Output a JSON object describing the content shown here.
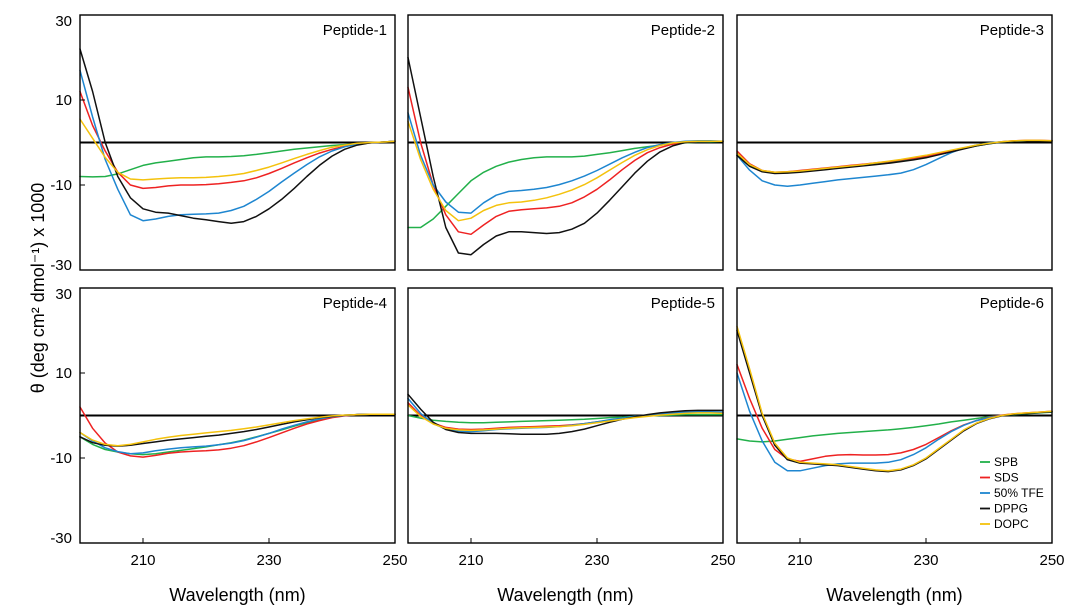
{
  "figure": {
    "ylabel": "θ (deg cm² dmol⁻¹) x 1000",
    "xlabel": "Wavelength (nm)"
  },
  "chart_data": {
    "type": "line",
    "xlim": [
      200,
      250
    ],
    "ylim": [
      -30,
      30
    ],
    "x_ticks": [
      210,
      230,
      250
    ],
    "y_ticks": [
      30,
      10,
      -10,
      -30
    ],
    "legend": {
      "placement": "bottom-right of Peptide-6 panel",
      "entries": [
        "SPB",
        "SDS",
        "50% TFE",
        "DPPG",
        "DOPC"
      ]
    },
    "colors": {
      "SPB": "#22b04a",
      "SDS": "#ee2222",
      "50% TFE": "#1e86d0",
      "DPPG": "#111111",
      "DOPC": "#f4c20d"
    },
    "x": [
      200,
      202,
      204,
      206,
      208,
      210,
      212,
      214,
      216,
      218,
      220,
      222,
      224,
      226,
      228,
      230,
      232,
      234,
      236,
      238,
      240,
      242,
      244,
      246,
      248,
      250
    ],
    "panels": [
      {
        "title": "Peptide-1",
        "series": [
          {
            "name": "SPB",
            "values": [
              -8.0,
              -8.1,
              -8.0,
              -7.4,
              -6.4,
              -5.4,
              -4.8,
              -4.4,
              -4.0,
              -3.6,
              -3.4,
              -3.4,
              -3.3,
              -3.1,
              -2.8,
              -2.4,
              -2.0,
              -1.6,
              -1.3,
              -1.0,
              -0.7,
              -0.5,
              -0.3,
              -0.1,
              0.1,
              0.3
            ]
          },
          {
            "name": "SDS",
            "values": [
              12,
              4.0,
              -2.0,
              -7.0,
              -10.0,
              -10.8,
              -10.6,
              -10.2,
              -10.0,
              -10.0,
              -9.9,
              -9.7,
              -9.4,
              -9.0,
              -8.3,
              -7.3,
              -6.1,
              -4.8,
              -3.6,
              -2.5,
              -1.6,
              -0.9,
              -0.4,
              -0.1,
              0.1,
              0.3
            ]
          },
          {
            "name": "50% TFE",
            "values": [
              17,
              6.0,
              -4.0,
              -11.0,
              -17.0,
              -18.4,
              -18.0,
              -17.4,
              -17.0,
              -16.9,
              -16.8,
              -16.6,
              -16.0,
              -15.0,
              -13.4,
              -11.5,
              -9.3,
              -7.2,
              -5.2,
              -3.4,
              -2.0,
              -1.0,
              -0.4,
              -0.1,
              0.1,
              0.3
            ]
          },
          {
            "name": "DPPG",
            "values": [
              22,
              12.0,
              0.0,
              -8.0,
              -13.0,
              -15.6,
              -16.4,
              -16.6,
              -17.2,
              -17.8,
              -18.2,
              -18.6,
              -19.0,
              -18.6,
              -17.4,
              -15.6,
              -13.4,
              -10.8,
              -8.0,
              -5.4,
              -3.2,
              -1.6,
              -0.6,
              -0.1,
              0.1,
              0.3
            ]
          },
          {
            "name": "DOPC",
            "values": [
              5.5,
              1.0,
              -3.5,
              -7.0,
              -8.6,
              -8.8,
              -8.6,
              -8.4,
              -8.3,
              -8.3,
              -8.2,
              -8.0,
              -7.7,
              -7.3,
              -6.6,
              -5.8,
              -4.8,
              -3.8,
              -2.8,
              -1.9,
              -1.1,
              -0.6,
              -0.2,
              0.0,
              0.1,
              0.3
            ]
          }
        ]
      },
      {
        "title": "Peptide-2",
        "series": [
          {
            "name": "SPB",
            "values": [
              -20.0,
              -20.0,
              -18.0,
              -15.0,
              -12.0,
              -9.0,
              -7.0,
              -5.6,
              -4.6,
              -4.0,
              -3.6,
              -3.4,
              -3.4,
              -3.4,
              -3.2,
              -2.8,
              -2.4,
              -1.9,
              -1.4,
              -1.0,
              -0.6,
              -0.3,
              -0.1,
              0.1,
              0.2,
              0.3
            ]
          },
          {
            "name": "SDS",
            "values": [
              13,
              0.0,
              -10.0,
              -17.0,
              -21.0,
              -21.6,
              -19.4,
              -17.4,
              -16.2,
              -15.8,
              -15.6,
              -15.4,
              -15.0,
              -14.2,
              -12.8,
              -11.0,
              -8.8,
              -6.4,
              -4.2,
              -2.4,
              -1.2,
              -0.4,
              0.0,
              0.2,
              0.3,
              0.3
            ]
          },
          {
            "name": "50% TFE",
            "values": [
              7.0,
              -3.0,
              -10.0,
              -14.0,
              -16.4,
              -16.6,
              -14.2,
              -12.4,
              -11.5,
              -11.3,
              -11.0,
              -10.6,
              -9.9,
              -9.0,
              -7.9,
              -6.6,
              -5.1,
              -3.6,
              -2.3,
              -1.2,
              -0.5,
              0.0,
              0.3,
              0.4,
              0.4,
              0.3
            ]
          },
          {
            "name": "DPPG",
            "values": [
              20,
              6.0,
              -8.0,
              -20.0,
              -26.0,
              -26.4,
              -24.0,
              -22.0,
              -21.0,
              -21.0,
              -21.2,
              -21.4,
              -21.2,
              -20.4,
              -19.0,
              -16.6,
              -13.6,
              -10.4,
              -7.2,
              -4.4,
              -2.2,
              -0.8,
              0.0,
              0.2,
              0.3,
              0.3
            ]
          },
          {
            "name": "DOPC",
            "values": [
              5.0,
              -4.0,
              -11.0,
              -16.0,
              -18.4,
              -17.8,
              -16.0,
              -14.8,
              -14.2,
              -14.0,
              -13.6,
              -13.0,
              -12.2,
              -11.2,
              -9.9,
              -8.3,
              -6.5,
              -4.7,
              -3.0,
              -1.7,
              -0.7,
              -0.1,
              0.2,
              0.3,
              0.3,
              0.3
            ]
          }
        ]
      },
      {
        "title": "Peptide-3",
        "series": [
          {
            "name": "SPB",
            "values": [
              -3.0,
              -5.4,
              -6.8,
              -7.1,
              -7.0,
              -6.8,
              -6.5,
              -6.1,
              -5.8,
              -5.5,
              -5.2,
              -4.9,
              -4.6,
              -4.3,
              -3.9,
              -3.4,
              -2.8,
              -2.1,
              -1.4,
              -0.8,
              -0.3,
              0.1,
              0.3,
              0.4,
              0.4,
              0.4
            ]
          },
          {
            "name": "SDS",
            "values": [
              -2.0,
              -5.0,
              -6.6,
              -7.0,
              -6.9,
              -6.6,
              -6.3,
              -6.0,
              -5.7,
              -5.4,
              -5.1,
              -4.8,
              -4.5,
              -4.1,
              -3.7,
              -3.2,
              -2.6,
              -2.0,
              -1.3,
              -0.7,
              -0.2,
              0.2,
              0.4,
              0.5,
              0.5,
              0.4
            ]
          },
          {
            "name": "50% TFE",
            "values": [
              -3.0,
              -6.5,
              -9.0,
              -10.0,
              -10.3,
              -10.0,
              -9.6,
              -9.2,
              -8.8,
              -8.5,
              -8.2,
              -7.9,
              -7.6,
              -7.2,
              -6.4,
              -5.2,
              -3.8,
              -2.4,
              -1.3,
              -0.6,
              -0.1,
              0.2,
              0.3,
              0.4,
              0.4,
              0.4
            ]
          },
          {
            "name": "DPPG",
            "values": [
              -3.0,
              -5.6,
              -6.9,
              -7.3,
              -7.2,
              -7.0,
              -6.7,
              -6.4,
              -6.1,
              -5.8,
              -5.5,
              -5.2,
              -4.9,
              -4.5,
              -4.1,
              -3.6,
              -2.9,
              -2.2,
              -1.5,
              -0.8,
              -0.3,
              0.1,
              0.3,
              0.4,
              0.4,
              0.4
            ]
          },
          {
            "name": "DOPC",
            "values": [
              -2.5,
              -5.2,
              -6.6,
              -7.0,
              -6.9,
              -6.7,
              -6.4,
              -6.1,
              -5.8,
              -5.5,
              -5.2,
              -4.8,
              -4.4,
              -4.0,
              -3.5,
              -3.0,
              -2.4,
              -1.8,
              -1.2,
              -0.6,
              -0.2,
              0.2,
              0.4,
              0.5,
              0.5,
              0.4
            ]
          }
        ]
      },
      {
        "title": "Peptide-4",
        "series": [
          {
            "name": "SPB",
            "values": [
              -5.0,
              -6.8,
              -8.0,
              -8.6,
              -9.0,
              -9.2,
              -9.0,
              -8.6,
              -8.2,
              -7.8,
              -7.4,
              -6.9,
              -6.4,
              -5.8,
              -5.0,
              -4.2,
              -3.4,
              -2.5,
              -1.7,
              -1.0,
              -0.4,
              0.0,
              0.2,
              0.3,
              0.3,
              0.3
            ]
          },
          {
            "name": "SDS",
            "values": [
              2.0,
              -3.0,
              -6.5,
              -8.6,
              -9.5,
              -9.8,
              -9.4,
              -8.9,
              -8.6,
              -8.4,
              -8.3,
              -8.1,
              -7.7,
              -7.1,
              -6.2,
              -5.2,
              -4.1,
              -3.0,
              -2.0,
              -1.2,
              -0.5,
              -0.1,
              0.2,
              0.3,
              0.3,
              0.3
            ]
          },
          {
            "name": "50% TFE",
            "values": [
              -4.0,
              -6.0,
              -7.6,
              -8.5,
              -9.0,
              -8.8,
              -8.3,
              -7.9,
              -7.6,
              -7.4,
              -7.2,
              -6.9,
              -6.5,
              -5.9,
              -5.1,
              -4.2,
              -3.2,
              -2.3,
              -1.5,
              -0.8,
              -0.3,
              0.0,
              0.2,
              0.3,
              0.3,
              0.3
            ]
          },
          {
            "name": "DPPG",
            "values": [
              -5.0,
              -6.4,
              -7.0,
              -7.2,
              -7.0,
              -6.6,
              -6.2,
              -5.8,
              -5.5,
              -5.2,
              -4.9,
              -4.6,
              -4.2,
              -3.8,
              -3.3,
              -2.7,
              -2.1,
              -1.5,
              -1.0,
              -0.5,
              -0.2,
              0.1,
              0.2,
              0.3,
              0.3,
              0.3
            ]
          },
          {
            "name": "DOPC",
            "values": [
              -4.0,
              -5.8,
              -6.8,
              -7.1,
              -6.8,
              -6.2,
              -5.6,
              -5.1,
              -4.7,
              -4.4,
              -4.1,
              -3.8,
              -3.5,
              -3.1,
              -2.7,
              -2.2,
              -1.7,
              -1.2,
              -0.8,
              -0.4,
              -0.1,
              0.1,
              0.2,
              0.3,
              0.3,
              0.3
            ]
          }
        ]
      },
      {
        "title": "Peptide-5",
        "series": [
          {
            "name": "SPB",
            "values": [
              0.0,
              -0.6,
              -1.1,
              -1.4,
              -1.6,
              -1.7,
              -1.7,
              -1.6,
              -1.5,
              -1.4,
              -1.3,
              -1.2,
              -1.1,
              -1.0,
              -0.9,
              -0.7,
              -0.5,
              -0.4,
              -0.2,
              -0.1,
              0.0,
              0.1,
              0.2,
              0.2,
              0.2,
              0.2
            ]
          },
          {
            "name": "SDS",
            "values": [
              3.0,
              0.0,
              -1.8,
              -2.8,
              -3.2,
              -3.3,
              -3.2,
              -3.0,
              -2.8,
              -2.7,
              -2.6,
              -2.5,
              -2.4,
              -2.2,
              -1.9,
              -1.5,
              -1.1,
              -0.7,
              -0.3,
              0.0,
              0.3,
              0.5,
              0.6,
              0.7,
              0.7,
              0.6
            ]
          },
          {
            "name": "50% TFE",
            "values": [
              4.0,
              0.5,
              -1.9,
              -3.2,
              -3.7,
              -3.8,
              -3.6,
              -3.3,
              -3.1,
              -3.0,
              -2.9,
              -2.8,
              -2.6,
              -2.3,
              -1.9,
              -1.5,
              -1.0,
              -0.6,
              -0.2,
              0.1,
              0.4,
              0.6,
              0.8,
              0.9,
              0.9,
              0.8
            ]
          },
          {
            "name": "DPPG",
            "values": [
              5.0,
              1.5,
              -1.6,
              -3.3,
              -4.0,
              -4.2,
              -4.2,
              -4.2,
              -4.3,
              -4.4,
              -4.4,
              -4.4,
              -4.2,
              -3.8,
              -3.2,
              -2.4,
              -1.6,
              -0.9,
              -0.3,
              0.2,
              0.6,
              0.9,
              1.1,
              1.2,
              1.2,
              1.2
            ]
          },
          {
            "name": "DOPC",
            "values": [
              2.5,
              -0.2,
              -2.0,
              -3.0,
              -3.4,
              -3.5,
              -3.4,
              -3.2,
              -3.0,
              -2.9,
              -2.8,
              -2.7,
              -2.6,
              -2.4,
              -2.1,
              -1.7,
              -1.3,
              -0.9,
              -0.5,
              -0.2,
              0.1,
              0.3,
              0.5,
              0.6,
              0.6,
              0.5
            ]
          }
        ]
      },
      {
        "title": "Peptide-6",
        "series": [
          {
            "name": "SPB",
            "values": [
              -5.5,
              -6.0,
              -6.2,
              -6.0,
              -5.6,
              -5.2,
              -4.8,
              -4.5,
              -4.2,
              -4.0,
              -3.8,
              -3.6,
              -3.4,
              -3.1,
              -2.8,
              -2.4,
              -2.0,
              -1.5,
              -1.1,
              -0.7,
              -0.3,
              0.0,
              0.2,
              0.4,
              0.6,
              0.8
            ]
          },
          {
            "name": "SDS",
            "values": [
              12,
              4.0,
              -3.0,
              -8.0,
              -10.2,
              -10.8,
              -10.2,
              -9.6,
              -9.3,
              -9.2,
              -9.3,
              -9.3,
              -9.2,
              -8.8,
              -8.0,
              -6.8,
              -5.2,
              -3.6,
              -2.2,
              -1.2,
              -0.4,
              0.1,
              0.4,
              0.6,
              0.8,
              1.0
            ]
          },
          {
            "name": "50% TFE",
            "values": [
              10,
              1.0,
              -6.0,
              -11.0,
              -13.0,
              -13.0,
              -12.4,
              -11.8,
              -11.4,
              -11.2,
              -11.2,
              -11.2,
              -11.0,
              -10.4,
              -9.2,
              -7.6,
              -5.6,
              -3.8,
              -2.3,
              -1.2,
              -0.5,
              0.0,
              0.3,
              0.5,
              0.7,
              0.9
            ]
          },
          {
            "name": "DPPG",
            "values": [
              20,
              10.0,
              0.0,
              -7.0,
              -10.4,
              -11.2,
              -11.4,
              -11.6,
              -11.8,
              -12.2,
              -12.6,
              -13.0,
              -13.2,
              -12.8,
              -11.8,
              -10.2,
              -8.0,
              -5.8,
              -3.6,
              -1.9,
              -0.8,
              -0.1,
              0.3,
              0.5,
              0.7,
              0.9
            ]
          },
          {
            "name": "DOPC",
            "values": [
              21,
              11.0,
              0.5,
              -6.5,
              -10.0,
              -11.0,
              -11.2,
              -11.4,
              -11.6,
              -12.0,
              -12.4,
              -12.8,
              -13.0,
              -12.6,
              -11.6,
              -10.0,
              -7.8,
              -5.6,
              -3.4,
              -1.8,
              -0.7,
              0.0,
              0.4,
              0.6,
              0.8,
              1.0
            ]
          }
        ]
      }
    ]
  }
}
